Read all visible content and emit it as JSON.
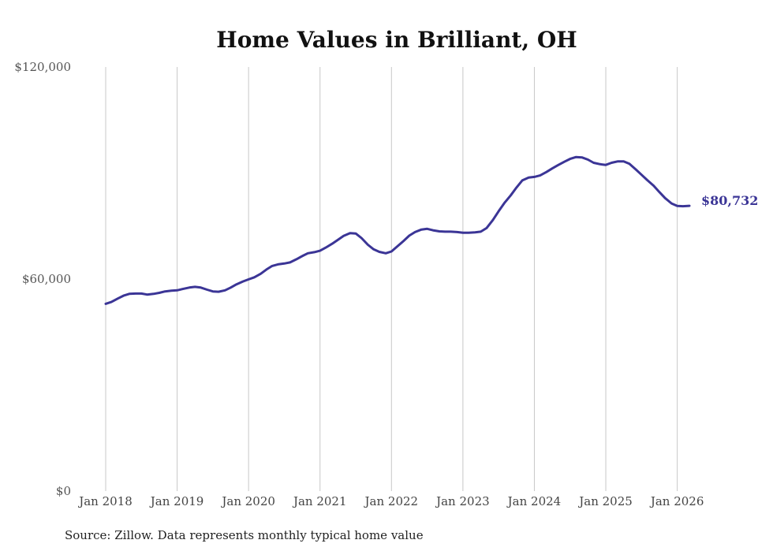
{
  "chart_data": {
    "type": "line",
    "title": "Home Values in Brilliant, OH",
    "xlabel": "",
    "ylabel": "",
    "ylim": [
      0,
      120000
    ],
    "y_ticks": [
      {
        "value": 0,
        "label": "$0"
      },
      {
        "value": 60000,
        "label": "$60,000"
      },
      {
        "value": 120000,
        "label": "$120,000"
      }
    ],
    "x_ticks": [
      {
        "value": 2018,
        "label": "Jan 2018"
      },
      {
        "value": 2019,
        "label": "Jan 2019"
      },
      {
        "value": 2020,
        "label": "Jan 2020"
      },
      {
        "value": 2021,
        "label": "Jan 2021"
      },
      {
        "value": 2022,
        "label": "Jan 2022"
      },
      {
        "value": 2023,
        "label": "Jan 2023"
      },
      {
        "value": 2024,
        "label": "Jan 2024"
      },
      {
        "value": 2025,
        "label": "Jan 2025"
      },
      {
        "value": 2026,
        "label": "Jan 2026"
      }
    ],
    "xlim": [
      2018,
      2026.17
    ],
    "grid": {
      "vertical": true,
      "horizontal": false
    },
    "series": [
      {
        "name": "Typical home value",
        "color": "#3b3596",
        "x": [
          2018.0,
          2018.08,
          2018.17,
          2018.25,
          2018.33,
          2018.42,
          2018.5,
          2018.58,
          2018.67,
          2018.75,
          2018.83,
          2018.92,
          2019.0,
          2019.08,
          2019.17,
          2019.25,
          2019.33,
          2019.42,
          2019.5,
          2019.58,
          2019.67,
          2019.75,
          2019.83,
          2019.92,
          2020.0,
          2020.08,
          2020.17,
          2020.25,
          2020.33,
          2020.42,
          2020.5,
          2020.58,
          2020.67,
          2020.75,
          2020.83,
          2020.92,
          2021.0,
          2021.08,
          2021.17,
          2021.25,
          2021.33,
          2021.42,
          2021.5,
          2021.58,
          2021.67,
          2021.75,
          2021.83,
          2021.92,
          2022.0,
          2022.08,
          2022.17,
          2022.25,
          2022.33,
          2022.42,
          2022.5,
          2022.58,
          2022.67,
          2022.75,
          2022.83,
          2022.92,
          2023.0,
          2023.08,
          2023.17,
          2023.25,
          2023.33,
          2023.42,
          2023.5,
          2023.58,
          2023.67,
          2023.75,
          2023.83,
          2023.92,
          2024.0,
          2024.08,
          2024.17,
          2024.25,
          2024.33,
          2024.42,
          2024.5,
          2024.58,
          2024.67,
          2024.75,
          2024.83,
          2024.92,
          2025.0,
          2025.08,
          2025.17,
          2025.25,
          2025.33,
          2025.42,
          2025.5,
          2025.58,
          2025.67,
          2025.75,
          2025.83,
          2025.92,
          2026.0,
          2026.08,
          2026.17
        ],
        "values": [
          53000,
          53500,
          54500,
          55300,
          55800,
          55900,
          55900,
          55600,
          55800,
          56100,
          56500,
          56700,
          56800,
          57200,
          57600,
          57800,
          57600,
          57000,
          56500,
          56400,
          56800,
          57600,
          58500,
          59300,
          59900,
          60500,
          61500,
          62700,
          63700,
          64200,
          64400,
          64700,
          65600,
          66500,
          67300,
          67600,
          68000,
          68900,
          70000,
          71100,
          72200,
          73000,
          72900,
          71600,
          69700,
          68400,
          67700,
          67300,
          67800,
          69200,
          70800,
          72300,
          73300,
          74000,
          74200,
          73800,
          73500,
          73400,
          73400,
          73300,
          73100,
          73100,
          73200,
          73400,
          74400,
          76700,
          79200,
          81500,
          83700,
          85900,
          87900,
          88700,
          88900,
          89300,
          90300,
          91300,
          92200,
          93200,
          94000,
          94500,
          94400,
          93800,
          92900,
          92500,
          92300,
          92900,
          93300,
          93300,
          92600,
          91000,
          89500,
          88000,
          86400,
          84600,
          82900,
          81400,
          80700,
          80600,
          80732
        ]
      }
    ],
    "end_label": "$80,732"
  },
  "source_text": "Source: Zillow. Data represents monthly typical home value"
}
